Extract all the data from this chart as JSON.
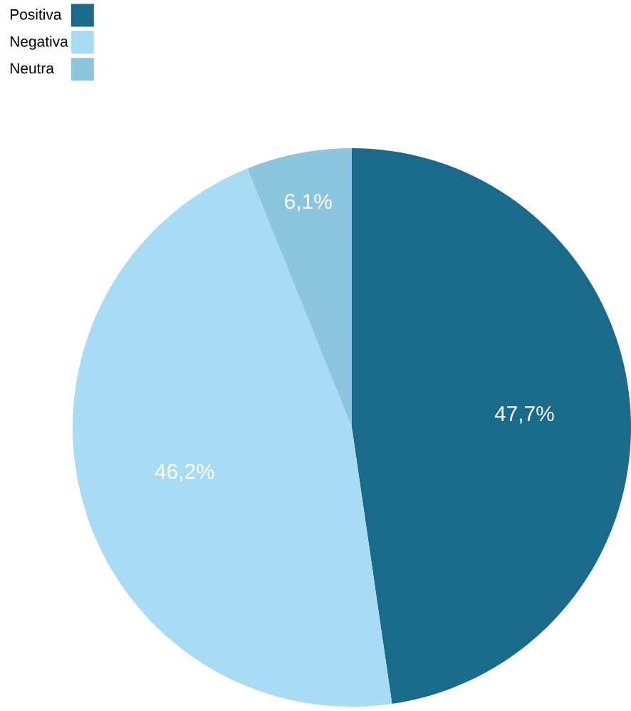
{
  "chart_data": {
    "type": "pie",
    "categories": [
      "Positiva",
      "Negativa",
      "Neutra"
    ],
    "values": [
      47.7,
      46.2,
      6.1
    ],
    "colors": [
      "#1a6a8c",
      "#a8dcf5",
      "#8cc6de"
    ],
    "value_labels": [
      "47,7%",
      "46,2%",
      "6,1%"
    ],
    "legend": "top left"
  }
}
